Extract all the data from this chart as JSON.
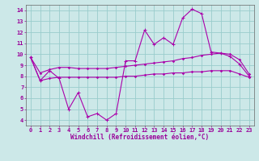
{
  "xlabel": "Windchill (Refroidissement éolien,°C)",
  "background_color": "#cce8e8",
  "grid_color": "#99cccc",
  "line_color": "#aa00aa",
  "x": [
    0,
    1,
    2,
    3,
    4,
    5,
    6,
    7,
    8,
    9,
    10,
    11,
    12,
    13,
    14,
    15,
    16,
    17,
    18,
    19,
    20,
    21,
    22,
    23
  ],
  "y_main": [
    9.7,
    7.6,
    8.5,
    7.8,
    5.0,
    6.5,
    4.3,
    4.6,
    4.0,
    4.6,
    9.4,
    9.4,
    12.2,
    10.9,
    11.5,
    10.9,
    13.3,
    14.1,
    13.7,
    10.2,
    10.1,
    9.8,
    9.1,
    8.0
  ],
  "y_upper": [
    9.7,
    8.3,
    8.6,
    8.8,
    8.8,
    8.7,
    8.7,
    8.7,
    8.7,
    8.8,
    8.9,
    9.0,
    9.1,
    9.2,
    9.3,
    9.4,
    9.6,
    9.7,
    9.9,
    10.0,
    10.1,
    10.0,
    9.5,
    8.2
  ],
  "y_lower": [
    9.7,
    7.6,
    7.8,
    7.9,
    7.9,
    7.9,
    7.9,
    7.9,
    7.9,
    7.9,
    8.0,
    8.0,
    8.1,
    8.2,
    8.2,
    8.3,
    8.3,
    8.4,
    8.4,
    8.5,
    8.5,
    8.5,
    8.2,
    7.9
  ],
  "ylim": [
    3.5,
    14.5
  ],
  "yticks": [
    4,
    5,
    6,
    7,
    8,
    9,
    10,
    11,
    12,
    13,
    14
  ],
  "xticks": [
    0,
    1,
    2,
    3,
    4,
    5,
    6,
    7,
    8,
    9,
    10,
    11,
    12,
    13,
    14,
    15,
    16,
    17,
    18,
    19,
    20,
    21,
    22,
    23
  ],
  "label_color": "#990099",
  "tick_color": "#990099"
}
